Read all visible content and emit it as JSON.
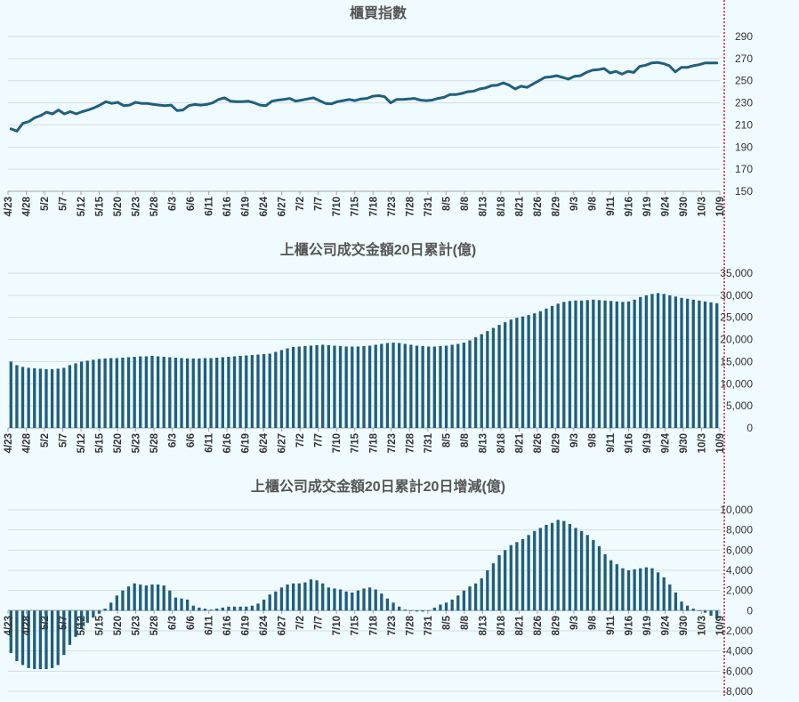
{
  "colors": {
    "background": "#f0fbff",
    "series": "#1f5f7e",
    "grid": "#d3dde2",
    "marker": "#cc2222",
    "text": "#333333"
  },
  "x_labels": [
    "4/23",
    "4/28",
    "5/2",
    "5/7",
    "5/12",
    "5/15",
    "5/20",
    "5/23",
    "5/28",
    "6/3",
    "6/6",
    "6/11",
    "6/16",
    "6/19",
    "6/24",
    "6/27",
    "7/2",
    "7/7",
    "7/10",
    "7/15",
    "7/18",
    "7/23",
    "7/28",
    "7/31",
    "8/5",
    "8/8",
    "8/13",
    "8/18",
    "8/21",
    "8/26",
    "8/29",
    "9/3",
    "9/8",
    "9/11",
    "9/16",
    "9/19",
    "9/24",
    "9/30",
    "10/3",
    "10/9"
  ],
  "chart_data": [
    {
      "type": "line",
      "title": "櫃買指數",
      "y_ticks": [
        150,
        170,
        190,
        210,
        230,
        250,
        270,
        290
      ],
      "ylim": [
        150,
        290
      ],
      "values": [
        206.5,
        204.5,
        211.5,
        213,
        216.5,
        218.5,
        221.5,
        220,
        223.5,
        220,
        222,
        220,
        222,
        223.5,
        225.5,
        228,
        231,
        229.5,
        230.5,
        227.5,
        228,
        230.5,
        229.5,
        229.5,
        228.5,
        228,
        227.5,
        228,
        223,
        223.5,
        227.5,
        228.5,
        228,
        228.5,
        230,
        233,
        234.5,
        231.5,
        231,
        231,
        231.5,
        230,
        228,
        227.5,
        231.5,
        232.5,
        233,
        234,
        231.5,
        232.5,
        233.5,
        234.5,
        232,
        229.5,
        229,
        231,
        232,
        233,
        232,
        233.5,
        234,
        236,
        236.5,
        235.5,
        230,
        233,
        233,
        233.5,
        234,
        232.5,
        232,
        232.5,
        234,
        235,
        237.5,
        237.5,
        238.5,
        240,
        240.5,
        242.5,
        243.5,
        245.5,
        246,
        248,
        246,
        242.5,
        245,
        244,
        247,
        250,
        253,
        253.5,
        254.5,
        253,
        251.5,
        254,
        254.5,
        257.5,
        259.5,
        260,
        261,
        257,
        258.5,
        256,
        258.5,
        257.5,
        263,
        264,
        266,
        266.5,
        265.5,
        263.5,
        258,
        262,
        262,
        263.5,
        264.5,
        266,
        266,
        266
      ]
    },
    {
      "type": "bar",
      "title": "上櫃公司成交金額20日累計(億)",
      "y_ticks": [
        0,
        5000,
        10000,
        15000,
        20000,
        25000,
        30000,
        35000
      ],
      "y_tick_labels": [
        "0",
        "5,000",
        "10,000",
        "15,000",
        "20,000",
        "25,000",
        "30,000",
        "35,000"
      ],
      "ylim": [
        0,
        35000
      ],
      "values": [
        15000,
        14200,
        13800,
        13600,
        13500,
        13400,
        13300,
        13300,
        13400,
        13600,
        14200,
        14600,
        15000,
        15200,
        15400,
        15600,
        15700,
        15800,
        15800,
        15900,
        16000,
        16100,
        16200,
        16200,
        16300,
        16200,
        16100,
        16000,
        15900,
        15800,
        15700,
        15700,
        15700,
        15800,
        15800,
        15900,
        16000,
        16100,
        16200,
        16300,
        16400,
        16500,
        16600,
        16700,
        16800,
        17200,
        17600,
        18000,
        18300,
        18400,
        18500,
        18600,
        18700,
        18800,
        18700,
        18600,
        18500,
        18400,
        18400,
        18400,
        18500,
        18600,
        18800,
        19000,
        19200,
        19300,
        19200,
        19000,
        18800,
        18600,
        18500,
        18400,
        18400,
        18500,
        18600,
        18800,
        19000,
        19300,
        19800,
        20500,
        21200,
        21900,
        22600,
        23300,
        23900,
        24500,
        24900,
        25200,
        25500,
        25900,
        26400,
        27000,
        27600,
        28100,
        28500,
        28700,
        28800,
        28800,
        28900,
        29000,
        28900,
        28800,
        28700,
        28600,
        28500,
        28600,
        29000,
        29600,
        30000,
        30300,
        30500,
        30300,
        30000,
        29700,
        29400,
        29200,
        29000,
        28800,
        28600,
        28400,
        28200
      ]
    },
    {
      "type": "bar",
      "title": "上櫃公司成交金額20日累計20日增減(億)",
      "y_ticks": [
        -8000,
        -6000,
        -4000,
        -2000,
        0,
        2000,
        4000,
        6000,
        8000,
        10000
      ],
      "y_tick_labels": [
        "-8,000",
        "-6,000",
        "-4,000",
        "-2,000",
        "0",
        "2,000",
        "4,000",
        "6,000",
        "8,000",
        "10,000"
      ],
      "ylim": [
        -8000,
        10000
      ],
      "values": [
        -4200,
        -5000,
        -5400,
        -5700,
        -5800,
        -5800,
        -5800,
        -5700,
        -5400,
        -4400,
        -3400,
        -2600,
        -1800,
        -1200,
        -700,
        -300,
        200,
        800,
        1500,
        2000,
        2400,
        2700,
        2600,
        2500,
        2600,
        2600,
        2500,
        2000,
        1300,
        1200,
        1100,
        500,
        300,
        200,
        100,
        200,
        300,
        400,
        400,
        400,
        400,
        500,
        700,
        1100,
        1600,
        1900,
        2300,
        2600,
        2700,
        2700,
        2800,
        3100,
        3000,
        2700,
        2300,
        2200,
        2100,
        1900,
        1800,
        2000,
        2200,
        2300,
        2100,
        1700,
        1200,
        800,
        400,
        100,
        0,
        -100,
        -100,
        0,
        300,
        600,
        800,
        1100,
        1500,
        2000,
        2400,
        2700,
        3200,
        4000,
        4700,
        5500,
        6000,
        6500,
        6800,
        7100,
        7500,
        7900,
        8200,
        8500,
        8700,
        9000,
        8900,
        8600,
        8200,
        7900,
        7500,
        7000,
        6400,
        5600,
        5000,
        4600,
        4200,
        4000,
        4100,
        4200,
        4300,
        4200,
        3800,
        3300,
        2600,
        1800,
        900,
        500,
        200,
        0,
        -200,
        -500,
        -800
      ]
    }
  ]
}
